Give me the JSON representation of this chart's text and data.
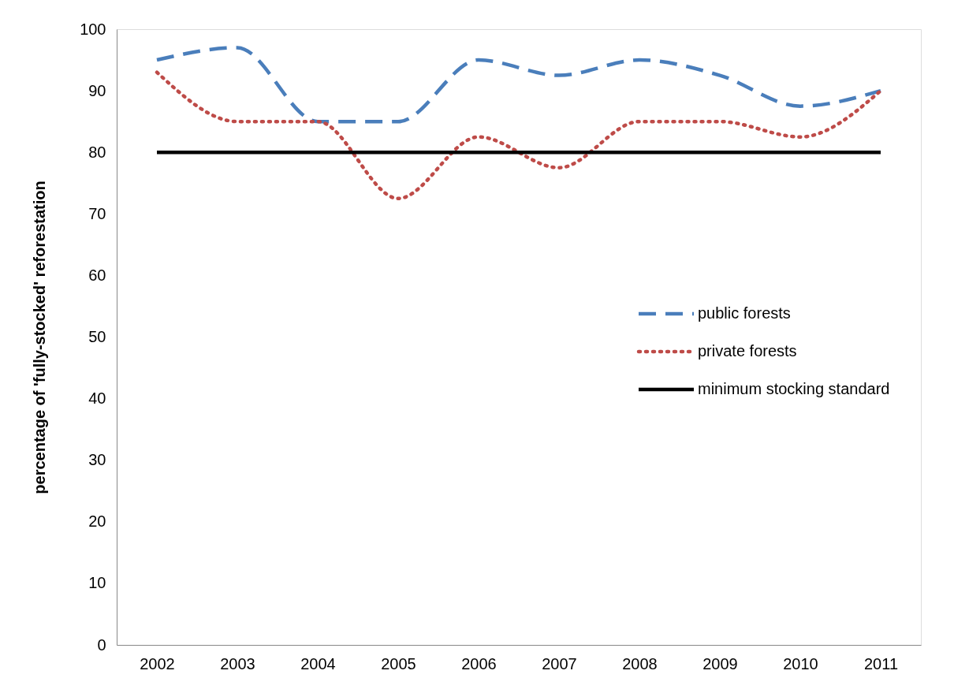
{
  "chart_data": {
    "type": "line",
    "ylabel": "percentage of 'fully-stocked' reforestation",
    "categories": [
      "2002",
      "2003",
      "2004",
      "2005",
      "2006",
      "2007",
      "2008",
      "2009",
      "2010",
      "2011"
    ],
    "series": [
      {
        "name": "public forests",
        "color": "#4a7ebb",
        "line_style": "dashed",
        "values": [
          95,
          97,
          85,
          85,
          95,
          92.5,
          95,
          92.5,
          87.5,
          90
        ]
      },
      {
        "name": "private forests",
        "color": "#be4b48",
        "line_style": "dotted",
        "values": [
          93,
          85,
          85,
          72.5,
          82.5,
          77.5,
          85,
          85,
          82.5,
          90
        ]
      },
      {
        "name": "minimum stocking standard",
        "color": "#000000",
        "line_style": "solid",
        "values": [
          80,
          80,
          80,
          80,
          80,
          80,
          80,
          80,
          80,
          80
        ]
      }
    ],
    "ylim": [
      0,
      100
    ],
    "yticks": [
      0,
      10,
      20,
      30,
      40,
      50,
      60,
      70,
      80,
      90,
      100
    ],
    "grid": false,
    "legend": "right",
    "marker": "none"
  }
}
